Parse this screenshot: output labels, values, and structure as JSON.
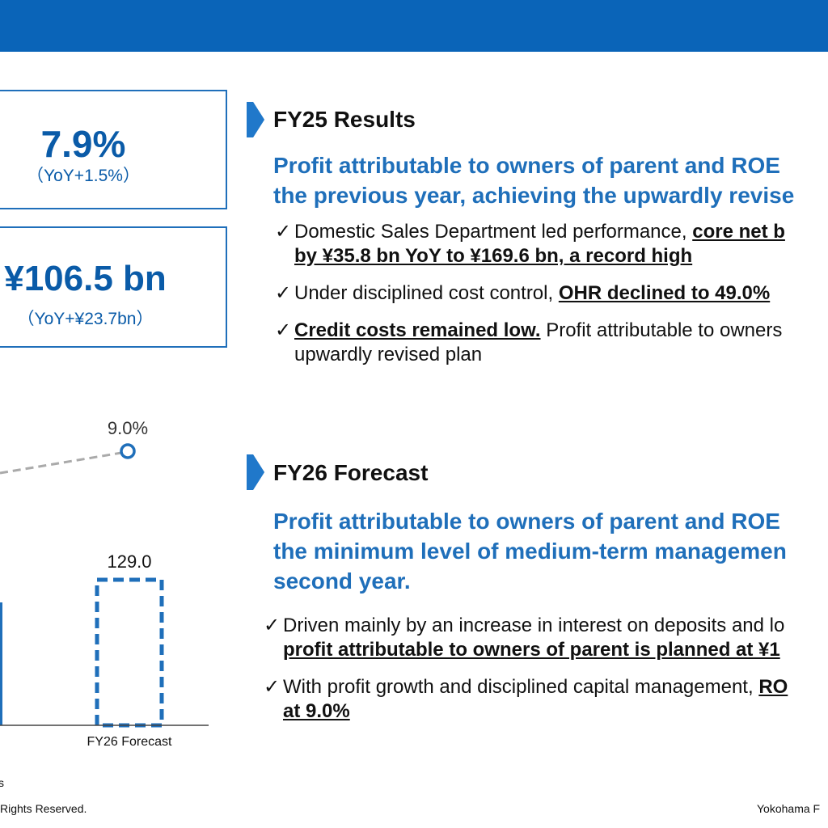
{
  "header": {
    "bar_color": "#0a64b8"
  },
  "kpis": {
    "roe": {
      "value": "7.9%",
      "sub": "（YoY+1.5%）"
    },
    "profit": {
      "value": "¥106.5 bn",
      "sub": "（YoY+¥23.7bn）"
    }
  },
  "fy25": {
    "title": "FY25 Results",
    "headline_1": "Profit attributable to owners of parent and ROE",
    "headline_2": "the previous year, achieving the upwardly revise",
    "bullets": [
      {
        "check": "✓",
        "lines": [
          [
            "Domestic Sales Department led performance, ",
            "core net b"
          ],
          [
            "",
            "by ¥35.8 bn YoY to ¥169.6 bn, a record high"
          ]
        ]
      },
      {
        "check": "✓",
        "lines": [
          [
            "Under disciplined cost control, ",
            "OHR declined to 49.0%"
          ]
        ]
      },
      {
        "check": "✓",
        "lines": [
          [
            "",
            "Credit costs remained low.",
            " Profit attributable to owners"
          ],
          [
            "upwardly revised plan"
          ]
        ]
      }
    ]
  },
  "fy26": {
    "title": "FY26 Forecast",
    "headline_1": "Profit attributable to owners of parent and ROE",
    "headline_2": "the minimum level of medium-term managemen",
    "headline_3": "second year.",
    "bullets": [
      {
        "check": "✓",
        "line_1": "Driven mainly by an increase in interest on deposits and lo",
        "line_2_u": "profit attributable to owners of parent is planned at ¥1"
      },
      {
        "check": "✓",
        "line_1": "With profit growth and disciplined capital management, ",
        "line_1_u": "RO",
        "line_2_u": "at 9.0%"
      }
    ]
  },
  "chart_data": {
    "type": "bar",
    "categories": [
      "FY26 Forecast"
    ],
    "values": [
      129.0
    ],
    "value_labels": [
      "129.0"
    ],
    "line_series": {
      "values": [
        9.0
      ],
      "labels": [
        "9.0%"
      ],
      "style": "dashed"
    },
    "colors": {
      "bar": "#1f6fba",
      "line": "#aaaaaa",
      "marker": "#1f6fba"
    }
  },
  "footer": {
    "note_fragment": "s",
    "copyright_fragment": "Rights Reserved.",
    "company_fragment": "Yokohama F"
  }
}
